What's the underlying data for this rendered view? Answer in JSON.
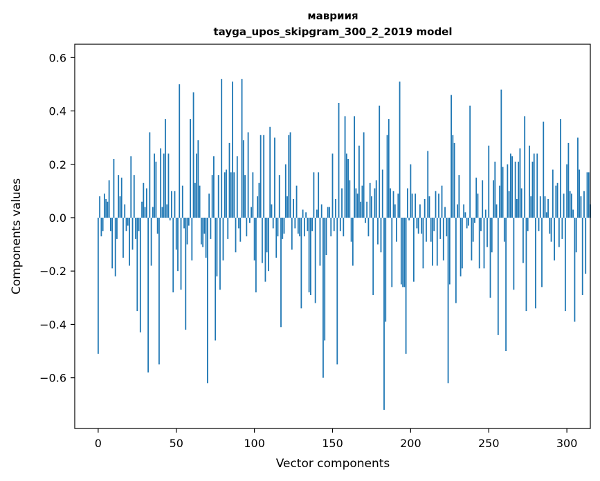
{
  "chart_data": {
    "type": "bar",
    "title": "мавриия",
    "subtitle": "tayga_upos_skipgram_300_2_2019 model",
    "xlabel": "Vector components",
    "ylabel": "Components values",
    "xlim": [
      -15,
      315
    ],
    "ylim": [
      -0.79,
      0.65
    ],
    "x_ticks": [
      0,
      50,
      100,
      150,
      200,
      250,
      300
    ],
    "x_tick_labels": [
      "0",
      "50",
      "100",
      "150",
      "200",
      "250",
      "300"
    ],
    "y_ticks": [
      -0.6,
      -0.4,
      -0.2,
      0.0,
      0.2,
      0.4,
      0.6
    ],
    "y_tick_labels": [
      "−0.6",
      "−0.4",
      "−0.2",
      "0.0",
      "0.2",
      "0.4",
      "0.6"
    ],
    "grid": false,
    "bar_color": "#1f77b4",
    "x_start": 0,
    "values": [
      -0.51,
      0.08,
      -0.07,
      -0.05,
      0.09,
      0.07,
      0.06,
      0.14,
      -0.05,
      -0.19,
      0.22,
      -0.22,
      -0.08,
      0.16,
      0.08,
      0.15,
      -0.15,
      0.05,
      -0.05,
      -0.03,
      -0.18,
      0.23,
      -0.12,
      0.16,
      -0.08,
      -0.35,
      -0.05,
      -0.43,
      0.06,
      0.13,
      0.04,
      0.11,
      -0.58,
      0.32,
      -0.18,
      0.04,
      0.24,
      0.21,
      -0.06,
      -0.55,
      0.26,
      0.04,
      0.24,
      0.37,
      0.05,
      0.24,
      -0.01,
      0.1,
      -0.28,
      0.1,
      -0.12,
      -0.2,
      0.5,
      -0.27,
      0.12,
      -0.04,
      -0.42,
      -0.1,
      -0.03,
      0.37,
      -0.16,
      0.47,
      0.13,
      0.24,
      0.29,
      0.12,
      -0.1,
      -0.11,
      -0.06,
      -0.15,
      -0.62,
      0.09,
      -0.08,
      0.16,
      0.23,
      -0.46,
      -0.22,
      0.16,
      -0.27,
      0.52,
      -0.16,
      0.17,
      0.18,
      -0.08,
      0.28,
      0.17,
      0.51,
      0.17,
      -0.13,
      0.23,
      -0.04,
      -0.09,
      0.52,
      0.29,
      0.16,
      -0.07,
      0.32,
      -0.02,
      0.04,
      0.17,
      -0.16,
      -0.28,
      0.08,
      0.13,
      0.31,
      -0.17,
      0.31,
      -0.24,
      -0.13,
      -0.2,
      0.34,
      0.05,
      -0.04,
      0.3,
      -0.15,
      -0.07,
      0.16,
      -0.41,
      -0.08,
      -0.06,
      0.2,
      0.08,
      0.31,
      0.32,
      -0.12,
      0.07,
      -0.04,
      0.12,
      -0.06,
      -0.07,
      -0.34,
      0.03,
      -0.07,
      0.02,
      -0.05,
      -0.28,
      -0.29,
      -0.05,
      0.17,
      -0.32,
      0.03,
      0.17,
      -0.18,
      0.05,
      -0.6,
      -0.46,
      -0.14,
      0.04,
      0.04,
      -0.07,
      0.24,
      -0.05,
      0.07,
      -0.55,
      0.43,
      -0.05,
      0.11,
      -0.07,
      0.38,
      0.24,
      0.22,
      0.14,
      -0.09,
      -0.18,
      0.38,
      0.11,
      0.09,
      0.27,
      0.06,
      0.12,
      0.32,
      -0.02,
      0.06,
      -0.07,
      0.13,
      0.08,
      -0.29,
      0.11,
      0.14,
      -0.1,
      0.42,
      -0.13,
      0.18,
      -0.72,
      -0.39,
      0.31,
      0.37,
      0.11,
      -0.26,
      0.1,
      0.05,
      -0.09,
      0.09,
      0.51,
      -0.25,
      -0.26,
      -0.26,
      -0.51,
      0.11,
      -0.01,
      0.2,
      0.09,
      -0.24,
      0.09,
      -0.04,
      -0.06,
      0.05,
      -0.06,
      -0.19,
      0.07,
      -0.09,
      0.25,
      0.08,
      -0.09,
      -0.18,
      -0.05,
      0.1,
      -0.18,
      0.09,
      -0.08,
      0.12,
      -0.16,
      0.04,
      -0.07,
      -0.62,
      -0.25,
      0.46,
      0.31,
      0.28,
      -0.32,
      0.05,
      0.16,
      -0.22,
      -0.19,
      0.05,
      0.02,
      -0.04,
      -0.03,
      0.42,
      -0.16,
      -0.09,
      -0.02,
      0.15,
      0.09,
      -0.19,
      -0.05,
      0.14,
      -0.19,
      0.03,
      -0.11,
      0.27,
      -0.3,
      -0.13,
      0.14,
      0.21,
      0.05,
      -0.44,
      0.12,
      0.48,
      0.19,
      -0.09,
      -0.5,
      0.2,
      0.1,
      0.24,
      0.23,
      -0.27,
      0.21,
      0.07,
      0.21,
      0.26,
      0.11,
      -0.17,
      0.38,
      -0.35,
      -0.05,
      0.27,
      0.08,
      0.21,
      0.24,
      -0.34,
      0.24,
      -0.05,
      0.08,
      -0.26,
      0.36,
      0.08,
      0.02,
      0.07,
      -0.06,
      -0.09,
      0.18,
      -0.16,
      0.12,
      0.13,
      -0.11,
      0.37,
      -0.08,
      0.09,
      -0.35,
      0.2,
      0.28,
      0.1,
      0.09,
      0.03,
      -0.39,
      -0.13,
      0.3,
      0.18,
      0.08,
      -0.29,
      0.1,
      -0.21,
      0.17,
      0.17,
      0.05
    ]
  }
}
